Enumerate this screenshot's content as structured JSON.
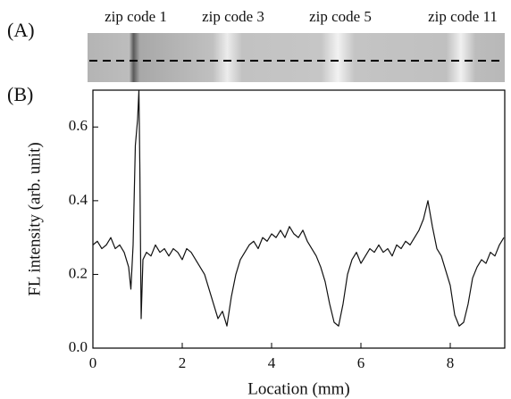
{
  "panel_labels": [
    "(A)",
    "(B)"
  ],
  "strip_labels": [
    "zip code 1",
    "zip code 3",
    "zip code 5",
    "zip code 11"
  ],
  "chart_data": {
    "type": "line",
    "x_label": "Location (mm)",
    "y_label": "FL intensity (arb. unit)",
    "x": [
      0,
      0.1,
      0.2,
      0.3,
      0.4,
      0.5,
      0.6,
      0.7,
      0.8,
      0.85,
      0.9,
      0.95,
      1.0,
      1.03,
      1.05,
      1.08,
      1.12,
      1.2,
      1.3,
      1.4,
      1.5,
      1.6,
      1.7,
      1.8,
      1.9,
      2.0,
      2.1,
      2.2,
      2.3,
      2.4,
      2.5,
      2.6,
      2.7,
      2.8,
      2.9,
      3.0,
      3.1,
      3.2,
      3.3,
      3.4,
      3.5,
      3.6,
      3.7,
      3.8,
      3.9,
      4.0,
      4.1,
      4.2,
      4.3,
      4.4,
      4.5,
      4.6,
      4.7,
      4.8,
      4.9,
      5.0,
      5.1,
      5.2,
      5.3,
      5.4,
      5.5,
      5.6,
      5.7,
      5.8,
      5.9,
      6.0,
      6.1,
      6.2,
      6.3,
      6.4,
      6.5,
      6.6,
      6.7,
      6.8,
      6.9,
      7.0,
      7.1,
      7.2,
      7.3,
      7.4,
      7.5,
      7.6,
      7.7,
      7.8,
      7.9,
      8.0,
      8.1,
      8.2,
      8.3,
      8.4,
      8.5,
      8.6,
      8.7,
      8.8,
      8.9,
      9.0,
      9.1,
      9.2
    ],
    "values": [
      0.28,
      0.29,
      0.27,
      0.28,
      0.3,
      0.27,
      0.28,
      0.26,
      0.22,
      0.16,
      0.28,
      0.55,
      0.62,
      0.7,
      0.5,
      0.08,
      0.24,
      0.26,
      0.25,
      0.28,
      0.26,
      0.27,
      0.25,
      0.27,
      0.26,
      0.24,
      0.27,
      0.26,
      0.24,
      0.22,
      0.2,
      0.16,
      0.12,
      0.08,
      0.1,
      0.06,
      0.14,
      0.2,
      0.24,
      0.26,
      0.28,
      0.29,
      0.27,
      0.3,
      0.29,
      0.31,
      0.3,
      0.32,
      0.3,
      0.33,
      0.31,
      0.3,
      0.32,
      0.29,
      0.27,
      0.25,
      0.22,
      0.18,
      0.12,
      0.07,
      0.06,
      0.12,
      0.2,
      0.24,
      0.26,
      0.23,
      0.25,
      0.27,
      0.26,
      0.28,
      0.26,
      0.27,
      0.25,
      0.28,
      0.27,
      0.29,
      0.28,
      0.3,
      0.32,
      0.35,
      0.4,
      0.33,
      0.27,
      0.25,
      0.21,
      0.17,
      0.09,
      0.06,
      0.07,
      0.12,
      0.19,
      0.22,
      0.24,
      0.23,
      0.26,
      0.25,
      0.28,
      0.3
    ],
    "color": "#111111",
    "xlim": [
      0,
      9.22
    ],
    "ylim": [
      0,
      0.7
    ],
    "xticks": [
      0,
      2,
      4,
      6,
      8
    ],
    "yticks": [
      {
        "value": 0,
        "label": "0.0"
      },
      0.2,
      0.4,
      0.6
    ]
  }
}
